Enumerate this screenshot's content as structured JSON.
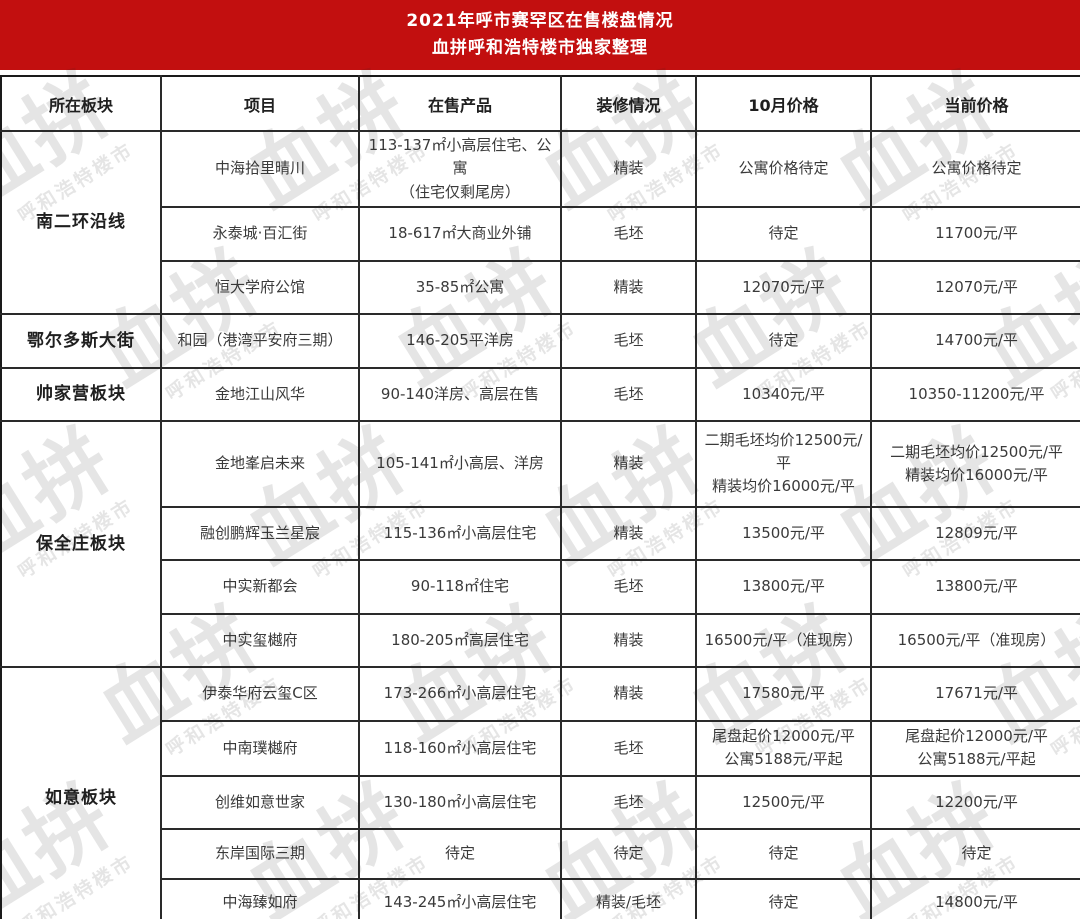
{
  "banner": {
    "title_line1": "2021年呼市赛罕区在售楼盘情况",
    "title_line2": "血拼呼和浩特楼市独家整理"
  },
  "colors": {
    "banner_bg": "#c20f0f",
    "banner_text": "#ffffff",
    "table_border": "#2a2a2a",
    "body_text": "#3a3a3a"
  },
  "table": {
    "columns": [
      "所在板块",
      "项目",
      "在售产品",
      "装修情况",
      "10月价格",
      "当前价格"
    ],
    "groups": [
      {
        "name": "南二环沿线",
        "rows": [
          {
            "project": "中海拾里晴川",
            "product": "113-137㎡小高层住宅、公寓\n（住宅仅剩尾房）",
            "decoration": "精装",
            "oct_price": "公寓价格待定",
            "current_price": "公寓价格待定"
          },
          {
            "project": "永泰城·百汇街",
            "product": "18-617㎡大商业外铺",
            "decoration": "毛坯",
            "oct_price": "待定",
            "current_price": "11700元/平"
          },
          {
            "project": "恒大学府公馆",
            "product": "35-85㎡公寓",
            "decoration": "精装",
            "oct_price": "12070元/平",
            "current_price": "12070元/平"
          }
        ]
      },
      {
        "name": "鄂尔多斯大街",
        "rows": [
          {
            "project": "和园（港湾平安府三期）",
            "product": "146-205平洋房",
            "decoration": "毛坯",
            "oct_price": "待定",
            "current_price": "14700元/平"
          }
        ]
      },
      {
        "name": "帅家营板块",
        "rows": [
          {
            "project": "金地江山风华",
            "product": "90-140洋房、高层在售",
            "decoration": "毛坯",
            "oct_price": "10340元/平",
            "current_price": "10350-11200元/平"
          }
        ]
      },
      {
        "name": "保全庄板块",
        "rows": [
          {
            "project": "金地峯启未来",
            "product": "105-141㎡小高层、洋房",
            "decoration": "精装",
            "oct_price": "二期毛坯均价12500元/平\n精装均价16000元/平",
            "current_price": "二期毛坯均价12500元/平\n精装均价16000元/平"
          },
          {
            "project": "融创鹏辉玉兰星宸",
            "product": "115-136㎡小高层住宅",
            "decoration": "精装",
            "oct_price": "13500元/平",
            "current_price": "12809元/平"
          },
          {
            "project": "中实新都会",
            "product": "90-118㎡住宅",
            "decoration": "毛坯",
            "oct_price": "13800元/平",
            "current_price": "13800元/平"
          },
          {
            "project": "中实玺樾府",
            "product": "180-205㎡高层住宅",
            "decoration": "精装",
            "oct_price": "16500元/平（准现房）",
            "current_price": "16500元/平（准现房）"
          }
        ]
      },
      {
        "name": "如意板块",
        "rows": [
          {
            "project": "伊泰华府云玺C区",
            "product": "173-266㎡小高层住宅",
            "decoration": "精装",
            "oct_price": "17580元/平",
            "current_price": "17671元/平"
          },
          {
            "project": "中南璞樾府",
            "product": "118-160㎡小高层住宅",
            "decoration": "毛坯",
            "oct_price": "尾盘起价12000元/平\n公寓5188元/平起",
            "current_price": "尾盘起价12000元/平\n公寓5188元/平起"
          },
          {
            "project": "创维如意世家",
            "product": "130-180㎡小高层住宅",
            "decoration": "毛坯",
            "oct_price": "12500元/平",
            "current_price": "12200元/平"
          },
          {
            "project": "东岸国际三期",
            "product": "待定",
            "decoration": "待定",
            "oct_price": "待定",
            "current_price": "待定"
          },
          {
            "project": "中海臻如府",
            "product": "143-245㎡小高层住宅",
            "decoration": "精装/毛坯",
            "oct_price": "待定",
            "current_price": "14800元/平"
          }
        ]
      }
    ]
  },
  "watermark": {
    "logo_text": "血拼",
    "sub_text": "呼和浩特楼市"
  }
}
